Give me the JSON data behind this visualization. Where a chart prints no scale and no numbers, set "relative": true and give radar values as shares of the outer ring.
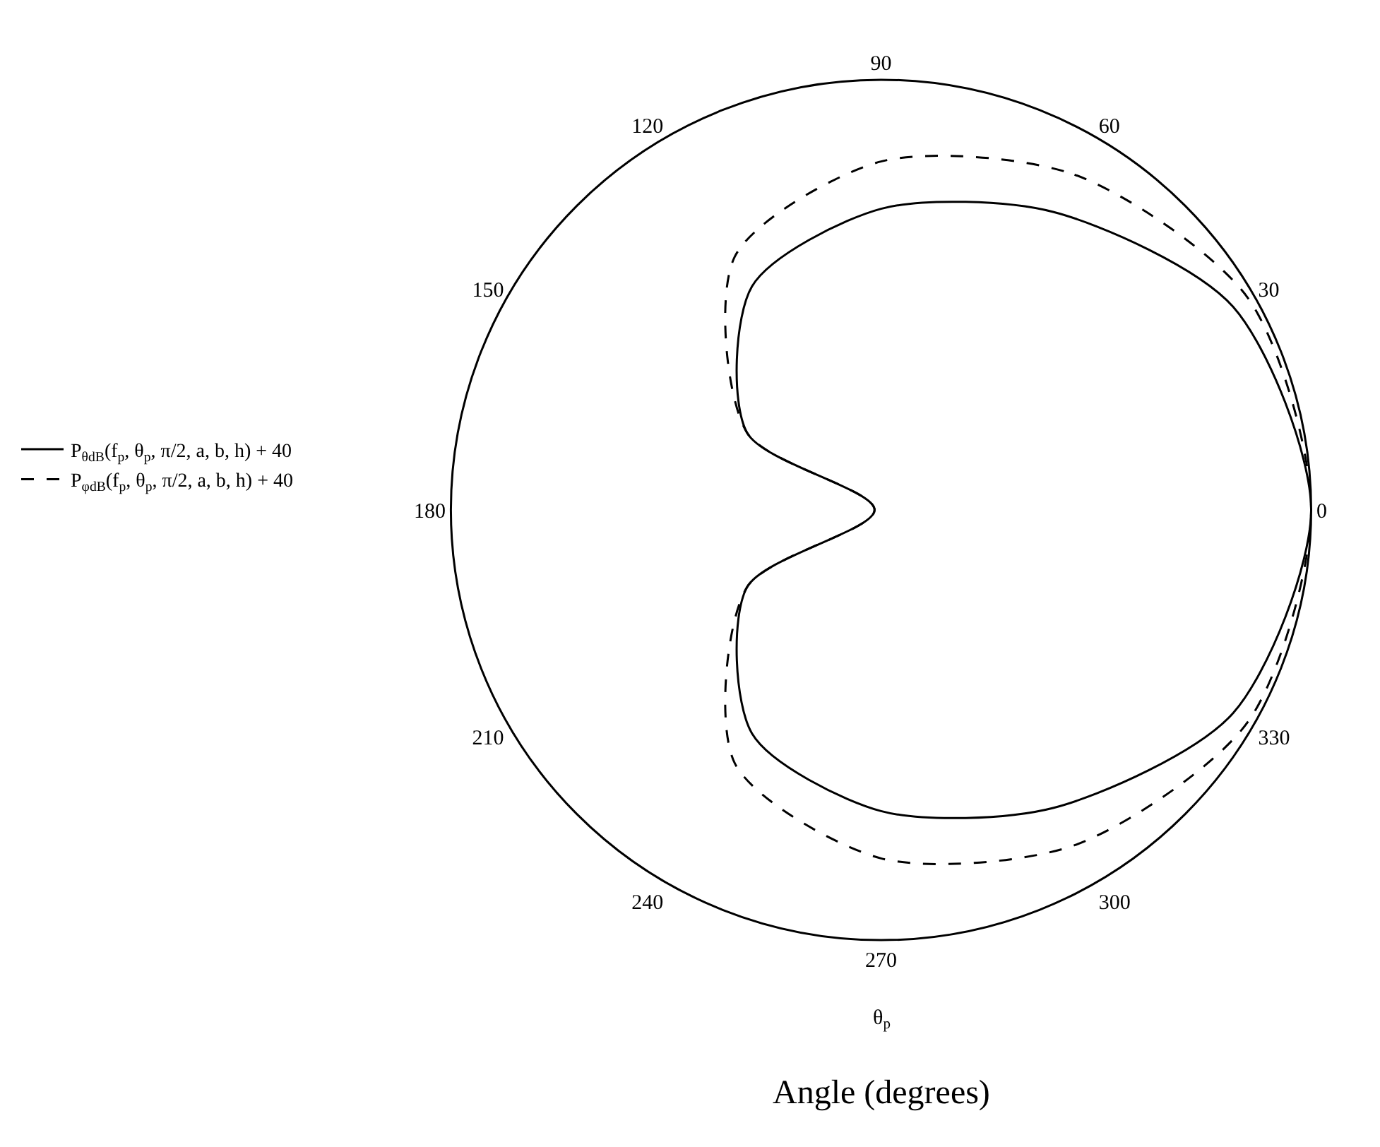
{
  "chart_data": {
    "type": "radar",
    "relative": true,
    "legend": "left",
    "xlabel": "θ$_{p}$",
    "annotations": [
      "Angle (degrees)"
    ],
    "categories": [
      "90",
      "60",
      "30",
      "0",
      "330",
      "300",
      "270",
      "240",
      "210",
      "180",
      "150",
      "120"
    ],
    "series": [
      {
        "name": "P$_{θdB}$(f$_{p}$, θ$_{p}$, π/2, a, b, h) + 40",
        "color": "#000000",
        "line_style": "solid",
        "values": [
          0.7,
          0.8,
          0.945,
          1.0,
          0.945,
          0.8,
          0.7,
          0.6,
          0.36,
          0.015,
          0.36,
          0.6
        ]
      },
      {
        "name": "P$_{φdB}$(f$_{p}$, θ$_{p}$, π/2, a, b, h) + 40",
        "color": "#000000",
        "line_style": "dashed",
        "values": [
          0.81,
          0.9,
          0.985,
          1.0,
          0.985,
          0.9,
          0.81,
          0.68,
          0.36,
          0.015,
          0.36,
          0.68
        ]
      }
    ]
  }
}
